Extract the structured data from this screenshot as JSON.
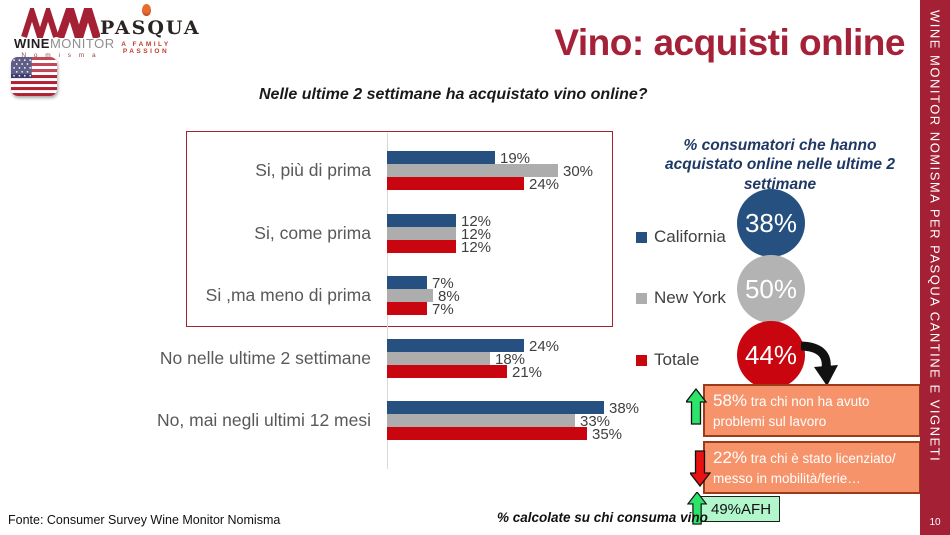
{
  "logos": {
    "winemonitor": {
      "word_bold": "WINE",
      "word_light": "MONITOR",
      "subtext": "N o m i s m a"
    },
    "pasqua": {
      "name": "PASQUA",
      "tagline": "A FAMILY PASSION"
    }
  },
  "title": "Vino: acquisti online",
  "question": "Nelle ultime 2 settimane ha acquistato vino online?",
  "chart_data": {
    "type": "bar",
    "orientation": "horizontal",
    "categories": [
      "Si, più di prima",
      "Si, come prima",
      "Si ,ma meno di prima",
      "No nelle ultime 2 settimane",
      "No, mai negli ultimi 12 mesi"
    ],
    "series": [
      {
        "name": "California",
        "color": "#26507f",
        "values": [
          19,
          12,
          7,
          24,
          38
        ]
      },
      {
        "name": "New York",
        "color": "#adadad",
        "values": [
          30,
          12,
          8,
          18,
          33
        ]
      },
      {
        "name": "Totale",
        "color": "#c9050f",
        "values": [
          24,
          12,
          7,
          21,
          35
        ]
      }
    ],
    "value_suffix": "%",
    "xlim": [
      0,
      40
    ],
    "grid": false,
    "legend_position": "right",
    "highlighted_categories": [
      "Si, più di prima",
      "Si, come prima",
      "Si ,ma meno di prima"
    ]
  },
  "right_panel": {
    "heading": "% consumatori che hanno acquistato online nelle ultime 2 settimane",
    "circles": [
      {
        "label": "California",
        "value": "38%",
        "color": "#26507f"
      },
      {
        "label": "New York",
        "value": "50%",
        "color": "#b3b3b3"
      },
      {
        "label": "Totale",
        "value": "44%",
        "color": "#c9050f"
      }
    ],
    "callouts": [
      {
        "arrow": "up",
        "value": "58%",
        "text": " tra chi non ha avuto problemi sul lavoro",
        "style": "orange"
      },
      {
        "arrow": "down",
        "value": "22%",
        "text": " tra chi è stato licenziato/ messo in mobilità/ferie…",
        "style": "orange"
      },
      {
        "arrow": "up",
        "value": "49%",
        "text": " AFH",
        "style": "green"
      }
    ]
  },
  "footer": {
    "source": "Fonte: Consumer Survey Wine Monitor Nomisma",
    "note": "% calcolate su chi consuma vino"
  },
  "sidebar": {
    "text": "WINE MONITOR NOMISMA PER PASQUA CANTINE E VIGNETI",
    "page": "10"
  },
  "colors": {
    "accent_crimson": "#a42138",
    "heading_blue": "#1f3864",
    "callout_orange": "#f7936a",
    "callout_orange_border": "#9c3a1a",
    "callout_green_bg": "#b2f6cc",
    "arrow_green": "#2be469",
    "arrow_red": "#e91212"
  }
}
